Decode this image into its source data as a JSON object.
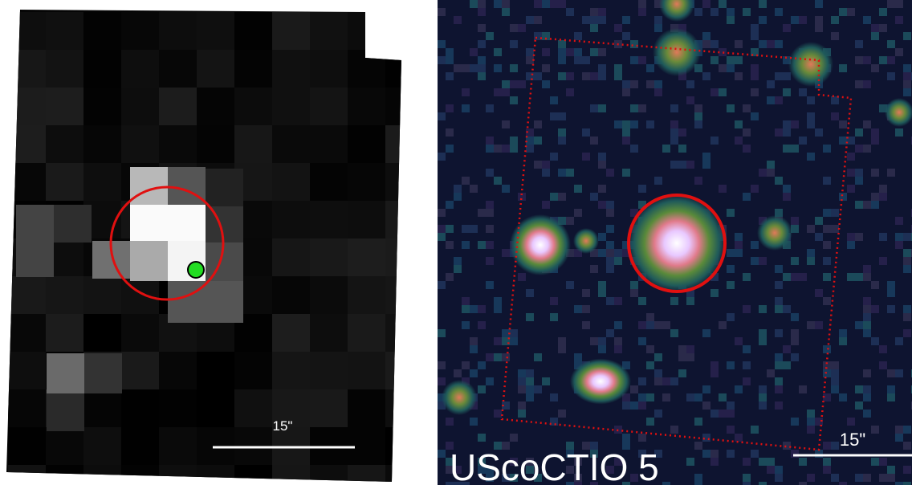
{
  "left_panel": {
    "scale_label": "15\""
  },
  "right_panel": {
    "scale_label": "15\"",
    "object_name": "UScoCTIO 5"
  }
}
